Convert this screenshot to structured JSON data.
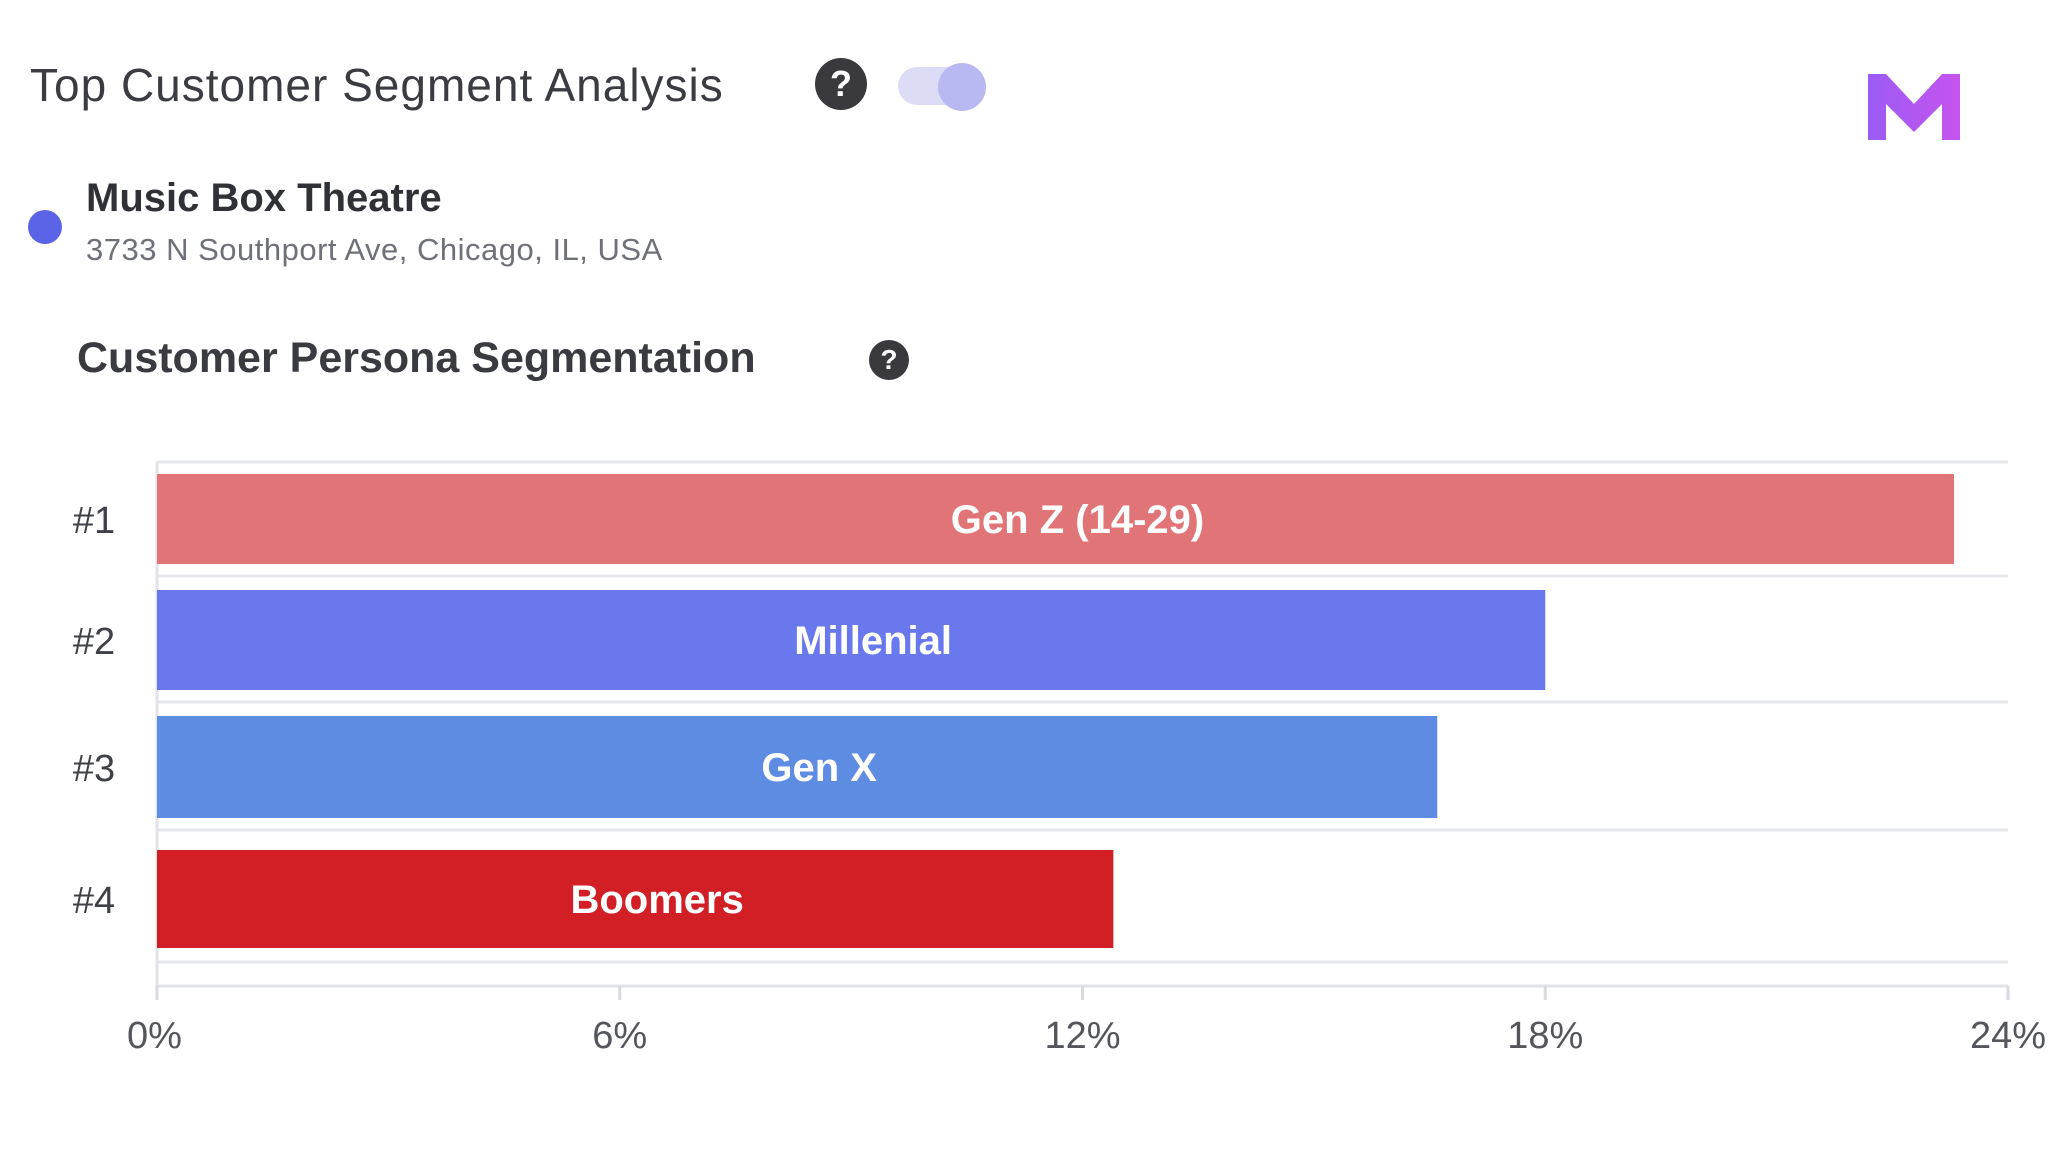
{
  "header": {
    "title": "Top Customer Segment Analysis",
    "help_icon": "question-circle-icon",
    "toggle_icon": "toggle-switch-icon",
    "logo_icon": "brand-m-logo-icon"
  },
  "location": {
    "name": "Music Box Theatre",
    "address": "3733 N Southport Ave, Chicago, IL, USA",
    "dot_color": "#5b63e6"
  },
  "chart_section": {
    "title": "Customer Persona Segmentation",
    "help_icon": "question-circle-icon"
  },
  "chart_data": {
    "type": "bar",
    "orientation": "horizontal",
    "title": "Customer Persona Segmentation",
    "xlabel": "",
    "ylabel": "",
    "xlim": [
      0,
      24
    ],
    "x_ticks": [
      "0%",
      "6%",
      "12%",
      "18%",
      "24%"
    ],
    "grid": true,
    "categories": [
      "#1",
      "#2",
      "#3",
      "#4"
    ],
    "bar_labels": [
      "Gen Z (14-29)",
      "Millenial",
      "Gen X",
      "Boomers"
    ],
    "values": [
      23.3,
      18.0,
      16.6,
      12.4
    ],
    "colors": [
      "#e07476",
      "#6a78ee",
      "#5d8ce2",
      "#d21f25"
    ]
  }
}
